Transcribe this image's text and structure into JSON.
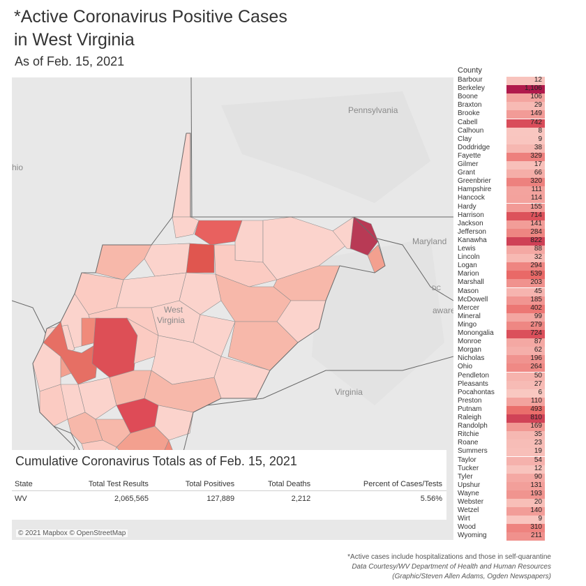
{
  "title_line1": "*Active Coronavirus Positive Cases",
  "title_line2": "in West Virginia",
  "subtitle": "As of Feb. 15, 2021",
  "map": {
    "labels": {
      "pennsylvania": "Pennsylvania",
      "ohio": "hio",
      "maryland": "Maryland",
      "west": "West",
      "virginia_wv": "Virginia",
      "virginia": "Virginia",
      "delaware": "aware",
      "dc": "DC"
    },
    "attribution": "© 2021 Mapbox © OpenStreetMap"
  },
  "totals": {
    "title": "Cumulative Coronavirus Totals as of Feb. 15, 2021",
    "headers": [
      "State",
      "Total Test Results",
      "Total Positives",
      "Total Deaths",
      "Percent of Cases/Tests"
    ],
    "row": [
      "WV",
      "2,065,565",
      "127,889",
      "2,212",
      "5.56%"
    ]
  },
  "chart_data": {
    "type": "table",
    "column_header": "County",
    "counties": [
      "Barbour",
      "Berkeley",
      "Boone",
      "Braxton",
      "Brooke",
      "Cabell",
      "Calhoun",
      "Clay",
      "Doddridge",
      "Fayette",
      "Gilmer",
      "Grant",
      "Greenbrier",
      "Hampshire",
      "Hancock",
      "Hardy",
      "Harrison",
      "Jackson",
      "Jefferson",
      "Kanawha",
      "Lewis",
      "Lincoln",
      "Logan",
      "Marion",
      "Marshall",
      "Mason",
      "McDowell",
      "Mercer",
      "Mineral",
      "Mingo",
      "Monongalia",
      "Monroe",
      "Morgan",
      "Nicholas",
      "Ohio",
      "Pendleton",
      "Pleasants",
      "Pocahontas",
      "Preston",
      "Putnam",
      "Raleigh",
      "Randolph",
      "Ritchie",
      "Roane",
      "Summers",
      "Taylor",
      "Tucker",
      "Tyler",
      "Upshur",
      "Wayne",
      "Webster",
      "Wetzel",
      "Wirt",
      "Wood",
      "Wyoming"
    ],
    "values": [
      12,
      1106,
      106,
      29,
      149,
      742,
      8,
      9,
      38,
      329,
      17,
      66,
      320,
      111,
      114,
      155,
      714,
      141,
      284,
      822,
      88,
      32,
      294,
      539,
      203,
      45,
      185,
      402,
      99,
      279,
      724,
      87,
      62,
      196,
      264,
      50,
      27,
      6,
      110,
      493,
      810,
      169,
      35,
      23,
      19,
      54,
      12,
      90,
      131,
      193,
      20,
      140,
      9,
      310,
      211
    ],
    "display_values": [
      "12",
      "1,106",
      "106",
      "29",
      "149",
      "742",
      "8",
      "9",
      "38",
      "329",
      "17",
      "66",
      "320",
      "111",
      "114",
      "155",
      "714",
      "141",
      "284",
      "822",
      "88",
      "32",
      "294",
      "539",
      "203",
      "45",
      "185",
      "402",
      "99",
      "279",
      "724",
      "87",
      "62",
      "196",
      "264",
      "50",
      "27",
      "6",
      "110",
      "493",
      "810",
      "169",
      "35",
      "23",
      "19",
      "54",
      "12",
      "90",
      "131",
      "193",
      "20",
      "140",
      "9",
      "310",
      "211"
    ],
    "color_scale": {
      "low": "#fbd3cc",
      "mid": "#e8615f",
      "high": "#b01a4c"
    }
  },
  "footnotes": {
    "line1": "*Active cases include hospitalizations and those in self-quarantine",
    "line2": "Data Courtesy/WV Department of Health and Human Resources",
    "line3": "(Graphic/Steven Allen Adams, Ogden Newspapers)"
  }
}
